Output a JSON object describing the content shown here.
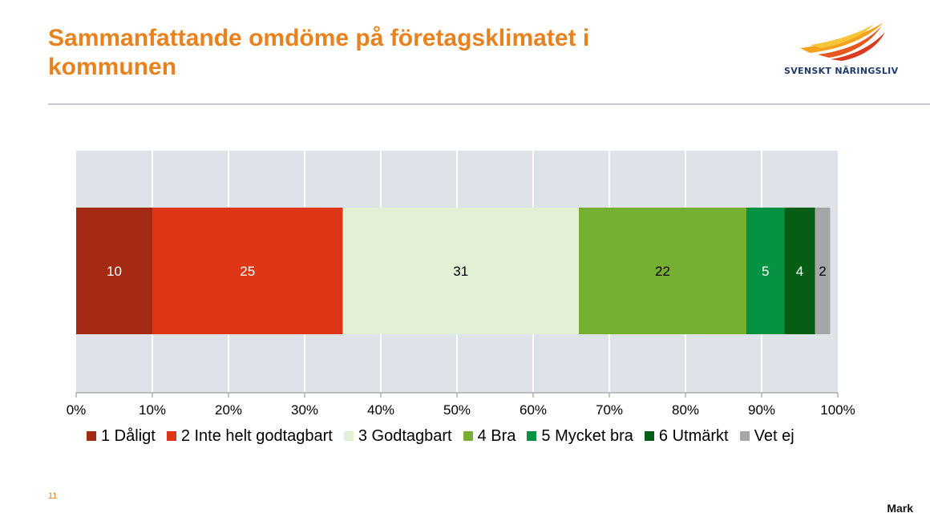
{
  "header": {
    "title": "Sammanfattande omdöme på företagsklimatet i kommunen",
    "logo_text": "SVENSKT NÄRINGSLIV"
  },
  "footer": {
    "slide_number": "11",
    "right_text": "Mark"
  },
  "colors": {
    "title": "#e8821e",
    "plot_background": "#dde3e9",
    "rule": "#c4cdd5"
  },
  "chart_data": {
    "type": "bar",
    "orientation": "horizontal",
    "stacked": true,
    "percent_stacked": true,
    "title": "Sammanfattande omdöme på företagsklimatet i kommunen",
    "xlabel": "",
    "ylabel": "",
    "xlim": [
      0,
      100
    ],
    "x_ticks": [
      "0%",
      "10%",
      "20%",
      "30%",
      "40%",
      "50%",
      "60%",
      "70%",
      "80%",
      "90%",
      "100%"
    ],
    "grid": true,
    "legend_position": "bottom",
    "categories": [
      ""
    ],
    "series": [
      {
        "name": "1 Dåligt",
        "values": [
          10
        ],
        "label": "10",
        "color": "#a52a14",
        "label_color": "#ffffff"
      },
      {
        "name": "2 Inte helt godtagbart",
        "values": [
          25
        ],
        "label": "25",
        "color": "#e03618",
        "label_color": "#ffffff"
      },
      {
        "name": "3 Godtagbart",
        "values": [
          31
        ],
        "label": "31",
        "color": "#e2f1d6",
        "label_color": "#000000"
      },
      {
        "name": "4 Bra",
        "values": [
          22
        ],
        "label": "22",
        "color": "#76b032",
        "label_color": "#000000"
      },
      {
        "name": "5 Mycket bra",
        "values": [
          5
        ],
        "label": "5",
        "color": "#079142",
        "label_color": "#ffffff"
      },
      {
        "name": "6 Utmärkt",
        "values": [
          4
        ],
        "label": "4",
        "color": "#055e14",
        "label_color": "#ffffff"
      },
      {
        "name": "Vet ej",
        "values": [
          2
        ],
        "label": "2",
        "color": "#a6a6a6",
        "label_color": "#000000"
      }
    ]
  }
}
